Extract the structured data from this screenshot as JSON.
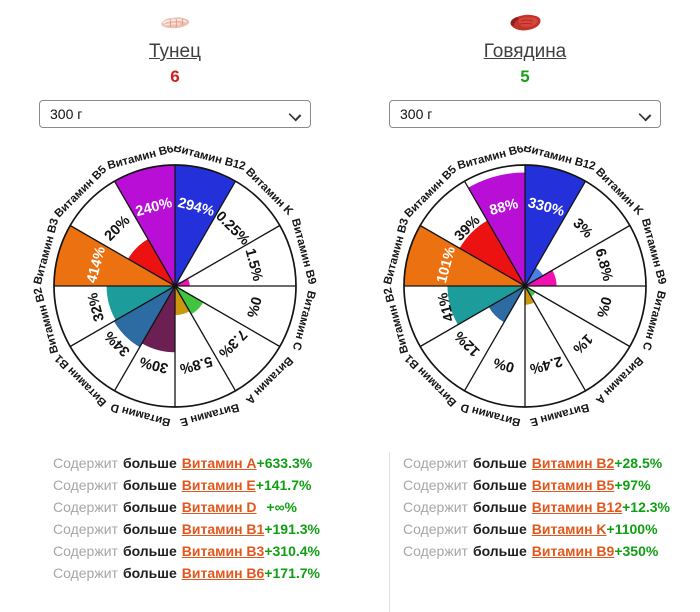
{
  "colors": {
    "vitamin_link": "#e2571d",
    "gain_value": "#0f9f13",
    "chart_line": "#141414"
  },
  "columns": [
    {
      "food": {
        "name": "Тунец",
        "count": "6",
        "count_color": "#cc2020",
        "icon": "tuna-icon"
      },
      "select": {
        "value": "300 г"
      },
      "more": {
        "rows": [
          {
            "w1": "Содержит",
            "w2": "больше",
            "vitamin": "Витамин A",
            "value": "+633.3%"
          },
          {
            "w1": "Содержит",
            "w2": "больше",
            "vitamin": "Витамин E",
            "value": "+141.7%"
          },
          {
            "w1": "Содержит",
            "w2": "больше",
            "vitamin": "Витамин D",
            "value": "+∞%"
          },
          {
            "w1": "Содержит",
            "w2": "больше",
            "vitamin": "Витамин B1",
            "value": "+191.3%"
          },
          {
            "w1": "Содержит",
            "w2": "больше",
            "vitamin": "Витамин B3",
            "value": "+310.4%"
          },
          {
            "w1": "Содержит",
            "w2": "больше",
            "vitamin": "Витамин B6",
            "value": "+171.7%"
          }
        ]
      }
    },
    {
      "food": {
        "name": "Говядина",
        "count": "5",
        "count_color": "#18a018",
        "icon": "beef-icon"
      },
      "select": {
        "value": "300 г"
      },
      "more": {
        "rows": [
          {
            "w1": "Содержит",
            "w2": "больше",
            "vitamin": "Витамин B2",
            "value": "+28.5%"
          },
          {
            "w1": "Содержит",
            "w2": "больше",
            "vitamin": "Витамин B5",
            "value": "+97%"
          },
          {
            "w1": "Содержит",
            "w2": "больше",
            "vitamin": "Витамин B12",
            "value": "+12.3%"
          },
          {
            "w1": "Содержит",
            "w2": "больше",
            "vitamin": "Витамин K",
            "value": "+1100%"
          },
          {
            "w1": "Содержит",
            "w2": "больше",
            "vitamin": "Витамин B9",
            "value": "+350%"
          }
        ]
      }
    }
  ],
  "chart_data": [
    {
      "type": "pie",
      "variant": "polar-sector-wheel",
      "title": "Тунец",
      "categories": [
        "Витамин B12",
        "Витамин K",
        "Витамин B9",
        "Витамин C",
        "Витамин A",
        "Витамин E",
        "Витамин D",
        "Витамин B1",
        "Витамин B2",
        "Витамин B3",
        "Витамин B5",
        "Витамин B6"
      ],
      "values": [
        294,
        0.25,
        1.5,
        0,
        7.3,
        5.8,
        30,
        34,
        32,
        414,
        20,
        240
      ],
      "value_labels": [
        "294%",
        "0.25%",
        "1.5%",
        "0%",
        "7.3%",
        "5.8%",
        "30%",
        "34%",
        "32%",
        "414%",
        "20%",
        "240%"
      ],
      "colors": [
        "#2431da",
        "#4b7fe8",
        "#f011b0",
        "#3cb44b",
        "#41c541",
        "#c9980f",
        "#6b1f52",
        "#2d6ba3",
        "#1d9c9c",
        "#ec7211",
        "#ec1212",
        "#b80ed6"
      ],
      "layout": {
        "start_angle_deg": 0,
        "clockwise": true,
        "sector_angle_deg": 30,
        "radius_scale": "sqrt(min(value,100)/100)",
        "grid": "spokes+rim",
        "legend": "none"
      }
    },
    {
      "type": "pie",
      "variant": "polar-sector-wheel",
      "title": "Говядина",
      "categories": [
        "Витамин B12",
        "Витамин K",
        "Витамин B9",
        "Витамин C",
        "Витамин A",
        "Витамин E",
        "Витамин D",
        "Витамин B1",
        "Витамин B2",
        "Витамин B3",
        "Витамин B5",
        "Витамин B6"
      ],
      "values": [
        330,
        3,
        6.8,
        0,
        1,
        2.4,
        0,
        12,
        41,
        101,
        39,
        88
      ],
      "value_labels": [
        "330%",
        "3%",
        "6.8%",
        "0%",
        "1%",
        "2.4%",
        "0%",
        "12%",
        "41%",
        "101%",
        "39%",
        "88%"
      ],
      "colors": [
        "#2431da",
        "#4b7fe8",
        "#f011b0",
        "#3cb44b",
        "#41c541",
        "#c9980f",
        "#6b1f52",
        "#2d6ba3",
        "#1d9c9c",
        "#ec7211",
        "#ec1212",
        "#b80ed6"
      ],
      "layout": {
        "start_angle_deg": 0,
        "clockwise": true,
        "sector_angle_deg": 30,
        "radius_scale": "sqrt(min(value,100)/100)",
        "grid": "spokes+rim",
        "legend": "none"
      }
    }
  ]
}
